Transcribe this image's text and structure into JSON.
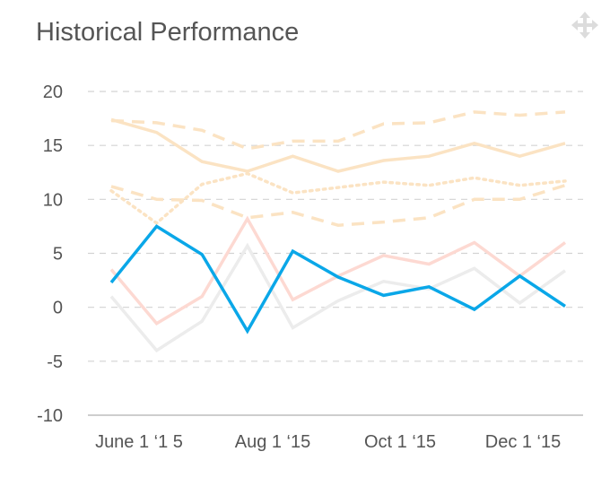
{
  "icons": {
    "move": "move-arrows-icon"
  },
  "chart_data": {
    "type": "line",
    "title": "Historical Performance",
    "xlabel": "",
    "ylabel": "",
    "ylim": [
      -10,
      20
    ],
    "yticks": [
      20,
      15,
      10,
      5,
      0,
      -5,
      -10
    ],
    "xtick_labels": [
      "June 1 ‘1 5",
      "Aug 1 ‘15",
      "Oct  1 ‘15",
      "Dec 1 ‘15"
    ],
    "x_count": 11,
    "grid": true,
    "series": [
      {
        "color": "#fbe3c3",
        "style": "dashed",
        "width": 3.5,
        "values": [
          17.3,
          17.1,
          16.4,
          14.7,
          15.4,
          15.4,
          17.0,
          17.1,
          18.1,
          17.8,
          18.1
        ]
      },
      {
        "color": "#fbe3c3",
        "style": "solid",
        "width": 3.5,
        "values": [
          17.4,
          16.2,
          13.5,
          12.6,
          14.0,
          12.6,
          13.6,
          14.0,
          15.2,
          14.0,
          15.2
        ]
      },
      {
        "color": "#fbe3c3",
        "style": "dotted",
        "width": 3.5,
        "values": [
          10.8,
          7.8,
          11.4,
          12.4,
          10.6,
          11.1,
          11.6,
          11.3,
          12.0,
          11.3,
          11.7
        ]
      },
      {
        "color": "#fbe3c3",
        "style": "dashed",
        "width": 3.5,
        "values": [
          11.2,
          10.0,
          9.9,
          8.3,
          8.8,
          7.6,
          7.9,
          8.3,
          10.0,
          10.0,
          11.3
        ]
      },
      {
        "color": "#fdd9d2",
        "style": "solid",
        "width": 3.5,
        "values": [
          3.5,
          -1.5,
          1.0,
          8.2,
          0.7,
          2.9,
          4.8,
          4.0,
          6.0,
          2.9,
          6.0
        ]
      },
      {
        "color": "#ececec",
        "style": "solid",
        "width": 3.5,
        "values": [
          1.0,
          -4.0,
          -1.3,
          5.7,
          -1.9,
          0.6,
          2.4,
          1.7,
          3.6,
          0.4,
          3.4
        ]
      },
      {
        "color": "#0aa7e8",
        "style": "solid",
        "width": 3.5,
        "values": [
          2.3,
          7.5,
          4.9,
          -2.2,
          5.2,
          2.8,
          1.1,
          1.9,
          -0.2,
          2.9,
          0.1
        ]
      }
    ]
  }
}
